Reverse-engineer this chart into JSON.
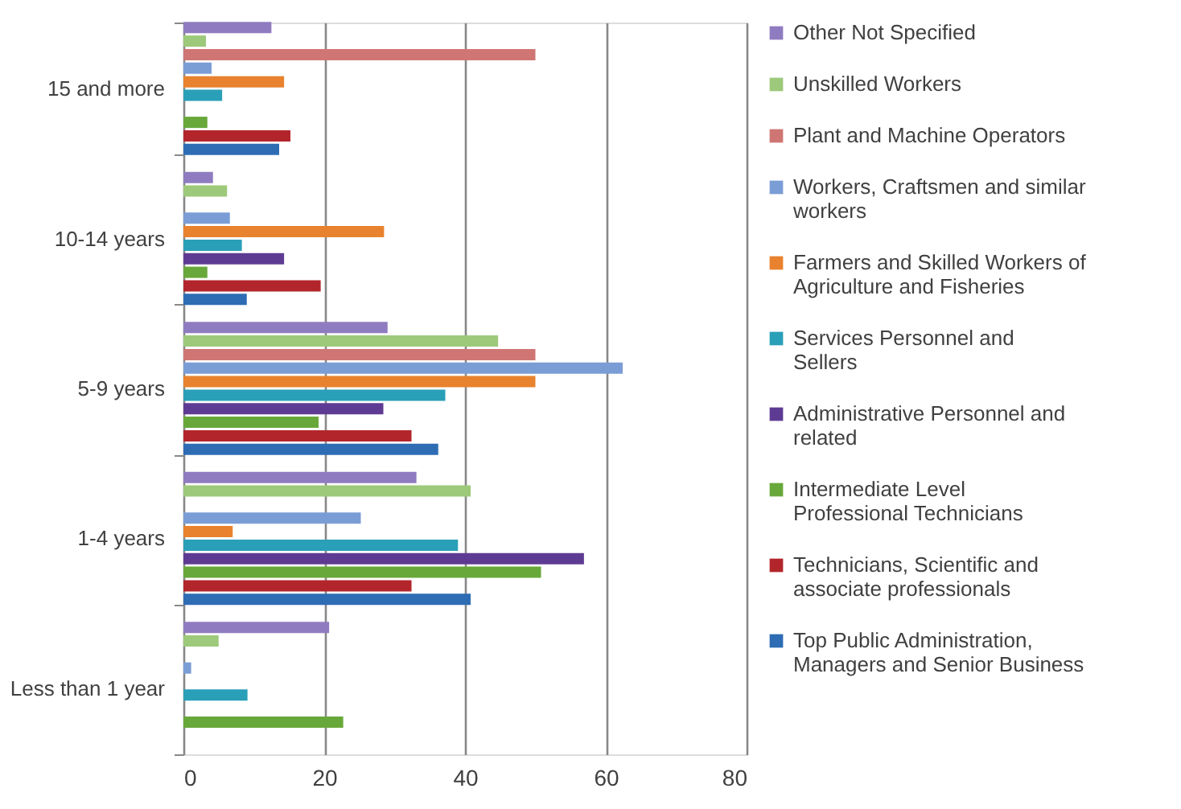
{
  "chart_data": {
    "type": "bar",
    "orientation": "horizontal",
    "categories": [
      "15 and more",
      "10-14 years",
      "5-9 years",
      "1-4 years",
      "Less than 1 year"
    ],
    "series": [
      {
        "name": "Other Not Specified",
        "color": "#8f7cc0",
        "values": [
          12.5,
          4.2,
          29,
          33.1,
          20.7
        ]
      },
      {
        "name": "Unskilled Workers",
        "color": "#9dc97a",
        "values": [
          3.2,
          6.2,
          44.7,
          40.8,
          5
        ]
      },
      {
        "name": "Plant and Machine Operators",
        "color": "#cf7674",
        "values": [
          50,
          0,
          50,
          0,
          0
        ]
      },
      {
        "name": "Workers, Craftsmen and similar workers",
        "color": "#7b9dd6",
        "values": [
          4,
          6.6,
          62.4,
          25.2,
          1.1
        ]
      },
      {
        "name": "Farmers and Skilled Workers of Agriculture and Fisheries",
        "color": "#e8822e",
        "values": [
          14.3,
          28.5,
          50,
          7,
          0
        ]
      },
      {
        "name": "Services Personnel  and Sellers",
        "color": "#2a9fb8",
        "values": [
          5.5,
          8.3,
          37.2,
          39,
          9.1
        ]
      },
      {
        "name": "Administrative Personnel and related",
        "color": "#5e3b93",
        "values": [
          0,
          14.3,
          28.4,
          56.9,
          0
        ]
      },
      {
        "name": "Intermediate Level Professional Technicians",
        "color": "#68a83a",
        "values": [
          3.4,
          3.4,
          19.2,
          50.8,
          22.7
        ]
      },
      {
        "name": "Technicians, Scientific and associate professionals",
        "color": "#b2262b",
        "values": [
          15.2,
          19.5,
          32.4,
          32.4,
          0
        ]
      },
      {
        "name": "Top Public Administration, Managers and Senior Business",
        "color": "#2e6cb4",
        "values": [
          13.6,
          9,
          36.2,
          40.8,
          0
        ]
      }
    ],
    "xlim": [
      0,
      80
    ],
    "xticks": [
      0,
      20,
      40,
      60,
      80
    ],
    "grid": "x",
    "legend": "right"
  }
}
